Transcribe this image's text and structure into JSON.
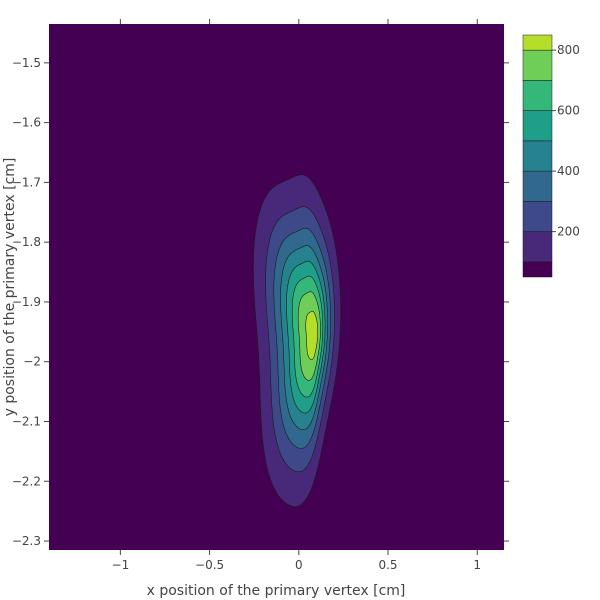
{
  "chart_data": {
    "type": "contour",
    "xlabel": "x position of the primary vertex [cm]",
    "ylabel": "y position of the primary vertex [cm]",
    "xlim": [
      -1.4,
      1.15
    ],
    "ylim": [
      -2.315,
      -1.435
    ],
    "x_ticks": [
      {
        "value": -1,
        "label": "−1"
      },
      {
        "value": -0.5,
        "label": "−0.5"
      },
      {
        "value": 0,
        "label": "0"
      },
      {
        "value": 0.5,
        "label": "0.5"
      },
      {
        "value": 1,
        "label": "1"
      }
    ],
    "y_ticks": [
      {
        "value": -1.5,
        "label": "−1.5"
      },
      {
        "value": -1.6,
        "label": "−1.6"
      },
      {
        "value": -1.7,
        "label": "−1.7"
      },
      {
        "value": -1.8,
        "label": "−1.8"
      },
      {
        "value": -1.9,
        "label": "−1.9"
      },
      {
        "value": -2.0,
        "label": "−2"
      },
      {
        "value": -2.1,
        "label": "−2.1"
      },
      {
        "value": -2.2,
        "label": "−2.2"
      },
      {
        "value": -2.3,
        "label": "−2.3"
      }
    ],
    "peak": {
      "x": 0.09,
      "y": -1.955,
      "value": 850
    },
    "contour_start": 100,
    "contour_step": 100,
    "contour_levels": [
      100,
      200,
      300,
      400,
      500,
      600,
      700,
      800
    ],
    "colorscale": {
      "name": "Viridis",
      "range": [
        50,
        850
      ],
      "bands": [
        "#440154",
        "#482878",
        "#3e4989",
        "#31688e",
        "#26828e",
        "#1f9e89",
        "#35b779",
        "#6ece58",
        "#b5de2b",
        "#fde725"
      ],
      "ticks": [
        {
          "value": 200,
          "label": "200"
        },
        {
          "value": 400,
          "label": "400"
        },
        {
          "value": 600,
          "label": "600"
        },
        {
          "value": 800,
          "label": "800"
        }
      ]
    },
    "contour_line_color": "#1a1a1a",
    "grid": false
  }
}
